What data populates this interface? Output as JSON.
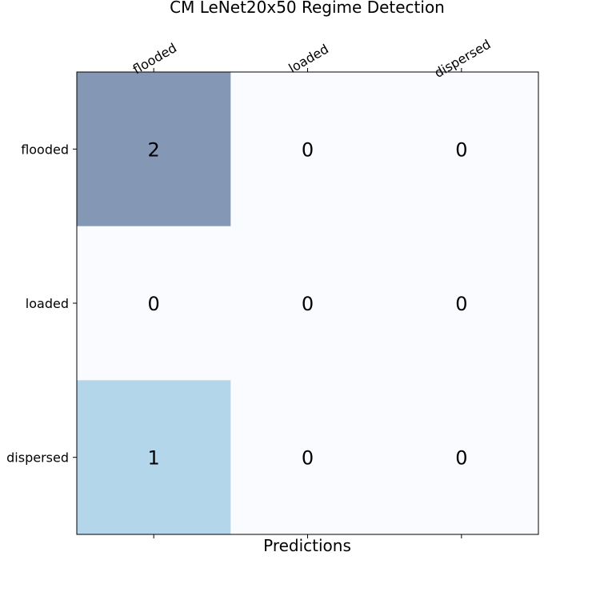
{
  "chart_data": {
    "type": "heatmap",
    "title": "CM LeNet20x50 Regime Detection",
    "xlabel": "Predictions",
    "ylabel": "",
    "x_categories": [
      "flooded",
      "loaded",
      "dispersed"
    ],
    "y_categories": [
      "flooded",
      "loaded",
      "dispersed"
    ],
    "values": [
      [
        2,
        0,
        0
      ],
      [
        0,
        0,
        0
      ],
      [
        1,
        0,
        0
      ]
    ],
    "x_tick_position": "top",
    "grid": false,
    "colormap": "Blues",
    "cell_colors": {
      "max": "#8497b5",
      "mid": "#b4d6ea",
      "zero": "#f9fbfe"
    }
  }
}
